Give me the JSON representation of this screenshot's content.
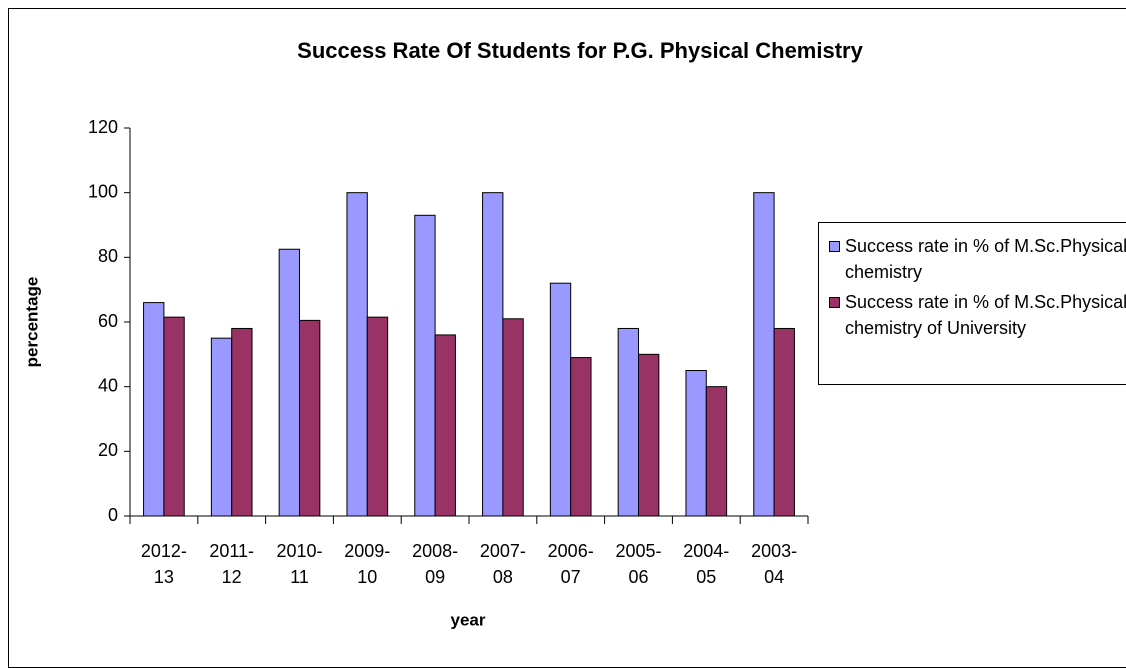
{
  "chart_data": {
    "type": "bar",
    "title": "Success Rate Of Students for P.G. Physical Chemistry",
    "x_label": "year",
    "y_label": "percentage",
    "categories": [
      "2012-13",
      "2011-12",
      "2010-11",
      "2009-10",
      "2008-09",
      "2007-08",
      "2006-07",
      "2005-06",
      "2004-05",
      "2003-04"
    ],
    "series": [
      {
        "name": "Success rate in % of M.Sc.Physical chemistry",
        "color": "#9999ff",
        "values": [
          66,
          55,
          82.5,
          100,
          93,
          100,
          72,
          58,
          45,
          100
        ]
      },
      {
        "name": "Success rate in % of M.Sc.Physical chemistry of University",
        "color": "#993366",
        "values": [
          61.5,
          58,
          60.5,
          61.5,
          56,
          61,
          49,
          50,
          40,
          58
        ]
      }
    ],
    "ylim": [
      0,
      120
    ],
    "yticks": [
      0,
      20,
      40,
      60,
      80,
      100,
      120
    ],
    "grid": false,
    "legend": "right"
  }
}
